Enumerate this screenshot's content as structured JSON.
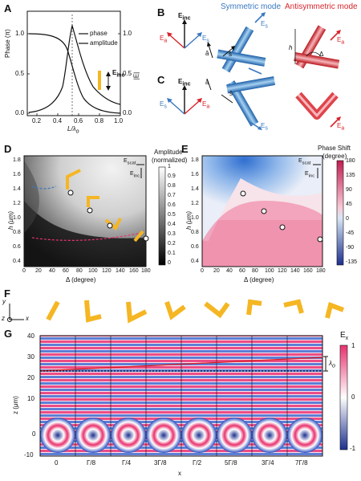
{
  "panels": {
    "A": {
      "letter": "A",
      "ylabel_left": "Phase (π)",
      "ylabel_right": "|E|",
      "xlabel": "L/λ",
      "xlabel_sub": "o",
      "legend": [
        "phase",
        "amplitude"
      ],
      "inc_label": "E",
      "inc_sub": "inc",
      "yticks_left": [
        "1.0",
        "0.5",
        "0.0"
      ],
      "yticks_right": [
        "1.0",
        "0.5",
        "0.0"
      ],
      "xticks": [
        "0.2",
        "0.4",
        "0.6",
        "0.8",
        "1.0"
      ]
    },
    "B": {
      "letter": "B",
      "title_sym": "Symmetric mode",
      "title_anti": "Antisymmetric mode",
      "e_inc": "E",
      "e_inc_sub": "inc",
      "e_a": "E",
      "e_a_sub": "a",
      "e_s": "E",
      "e_s_sub": "s",
      "a_hat": "â",
      "s_hat": "ŝ",
      "h": "h",
      "delta": "Δ"
    },
    "C": {
      "letter": "C"
    },
    "D": {
      "letter": "D",
      "cbar_title_1": "Amplitude",
      "cbar_title_2": "(normalized)",
      "cbar_ticks": [
        "1",
        "0.9",
        "0.8",
        "0.7",
        "0.6",
        "0.5",
        "0.4",
        "0.3",
        "0.2",
        "0.1",
        "0"
      ],
      "ylabel": "h (μm)",
      "xlabel": "Δ (degree)",
      "yticks": [
        "1.8",
        "1.6",
        "1.4",
        "1.2",
        "1.0",
        "0.8",
        "0.6",
        "0.4"
      ],
      "xticks": [
        "0",
        "20",
        "40",
        "60",
        "80",
        "100",
        "120",
        "140",
        "160",
        "180"
      ],
      "e_scat": "E",
      "e_scat_sub": "scat",
      "e_inc": "E",
      "e_inc_sub": "inc"
    },
    "E": {
      "letter": "E",
      "cbar_title_1": "Phase Shift",
      "cbar_title_2": "(degree)",
      "cbar_ticks": [
        "180",
        "135",
        "90",
        "45",
        "0",
        "-45",
        "-90",
        "-135"
      ],
      "ylabel": "h (μm)",
      "xlabel": "Δ (degree)",
      "yticks": [
        "1.8",
        "1.6",
        "1.4",
        "1.2",
        "1.0",
        "0.8",
        "0.6",
        "0.4"
      ],
      "xticks": [
        "0",
        "20",
        "40",
        "60",
        "80",
        "100",
        "120",
        "140",
        "160",
        "180"
      ],
      "e_scat": "E",
      "e_scat_sub": "scat",
      "e_inc": "E",
      "e_inc_sub": "inc"
    },
    "F": {
      "letter": "F",
      "axis_y": "y",
      "axis_x": "x",
      "axis_z": "z"
    },
    "G": {
      "letter": "G",
      "ylabel": "z (μm)",
      "xlabel": "x",
      "yticks": [
        "40",
        "30",
        "20",
        "10",
        "0",
        "-10"
      ],
      "xticks": [
        "0",
        "Γ/8",
        "Γ/4",
        "3Γ/8",
        "Γ/2",
        "5Γ/8",
        "3Γ/4",
        "7Γ/8"
      ],
      "cbar_title": "E",
      "cbar_title_sub": "x",
      "cbar_ticks": [
        "1",
        "0",
        "-1"
      ],
      "lambda_label": "λ",
      "lambda_sub": "o"
    }
  },
  "colors": {
    "gold": "#f5b623",
    "blue": "#3a78c0",
    "red": "#d8232a",
    "pink": "#e8326e",
    "navy": "#1c2f8f"
  }
}
